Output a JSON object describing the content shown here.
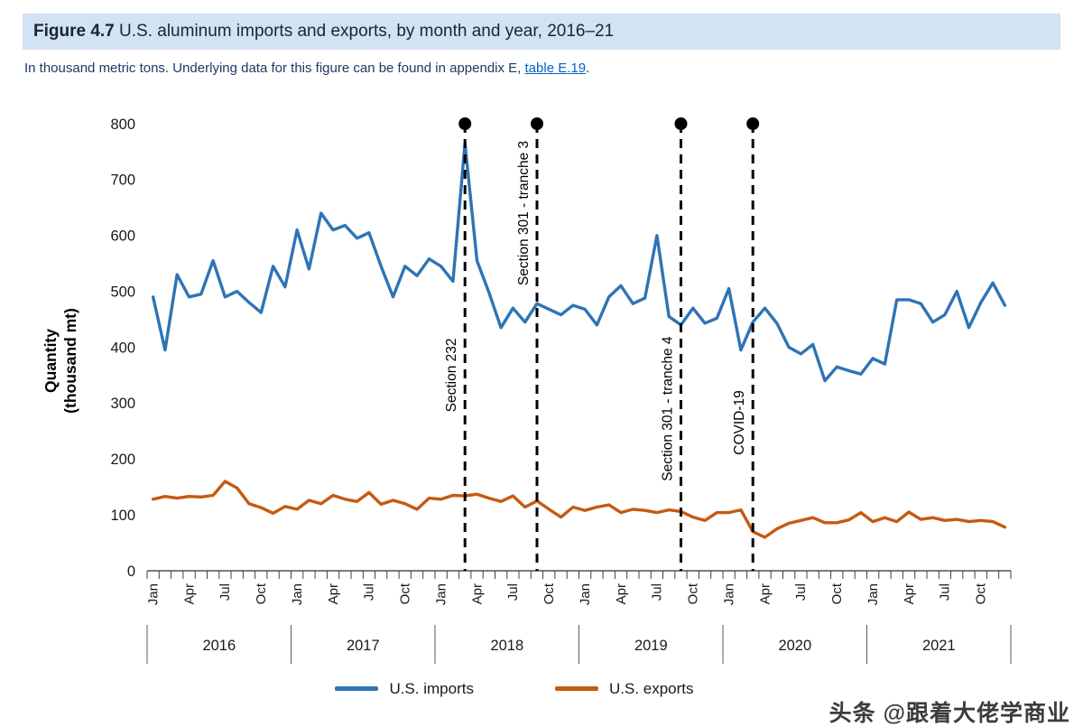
{
  "figure": {
    "label": "Figure 4.7",
    "title": " U.S. aluminum imports and exports, by month and year, 2016–21",
    "subtitle_prefix": "In thousand metric tons. Underlying data for this figure can be found in appendix E, ",
    "subtitle_link": "table E.19",
    "subtitle_suffix": "."
  },
  "watermark": "头条 @跟着大佬学商业",
  "chart_data": {
    "type": "line",
    "title": "U.S. aluminum imports and exports, by month and year, 2016–21",
    "ylabel": "Quantity (thousand mt)",
    "ylabel_lines": [
      "Quantity",
      "(thousand mt)"
    ],
    "ylim": [
      0,
      800
    ],
    "ytick_step": 100,
    "grid": false,
    "legend_position": "bottom",
    "years": [
      "2016",
      "2017",
      "2018",
      "2019",
      "2020",
      "2021"
    ],
    "month_tick_labels": [
      "Jan",
      "Apr",
      "Jul",
      "Oct"
    ],
    "series": [
      {
        "name": "U.S. imports",
        "color": "#2E74B5",
        "values": [
          490,
          395,
          530,
          490,
          495,
          555,
          490,
          500,
          480,
          462,
          545,
          508,
          610,
          540,
          640,
          610,
          618,
          595,
          605,
          545,
          490,
          545,
          528,
          558,
          545,
          518,
          765,
          555,
          498,
          435,
          470,
          445,
          478,
          468,
          458,
          475,
          468,
          440,
          490,
          510,
          478,
          488,
          600,
          455,
          440,
          470,
          443,
          452,
          505,
          395,
          445,
          470,
          443,
          400,
          388,
          405,
          340,
          365,
          358,
          352,
          380,
          370,
          485,
          485,
          478,
          445,
          458,
          500,
          435,
          480,
          515,
          475
        ]
      },
      {
        "name": "U.S. exports",
        "color": "#C55A11",
        "values": [
          128,
          133,
          130,
          133,
          132,
          135,
          160,
          148,
          120,
          113,
          103,
          115,
          110,
          126,
          120,
          135,
          128,
          124,
          140,
          119,
          126,
          120,
          110,
          130,
          128,
          135,
          134,
          137,
          130,
          124,
          134,
          114,
          125,
          110,
          96,
          114,
          108,
          114,
          118,
          104,
          110,
          108,
          104,
          109,
          106,
          96,
          90,
          104,
          104,
          109,
          70,
          60,
          75,
          85,
          90,
          95,
          86,
          86,
          91,
          104,
          88,
          95,
          88,
          105,
          92,
          95,
          90,
          92,
          88,
          90,
          88,
          78
        ]
      }
    ],
    "events": [
      {
        "label": "Section 232",
        "month_index": 26,
        "label_y": 350
      },
      {
        "label": "Section 301 - tranche 3",
        "month_index": 32,
        "label_y": 640
      },
      {
        "label": "Section 301 - tranche 4",
        "month_index": 44,
        "label_y": 290
      },
      {
        "label": "COVID-19",
        "month_index": 50,
        "label_y": 265
      }
    ]
  }
}
